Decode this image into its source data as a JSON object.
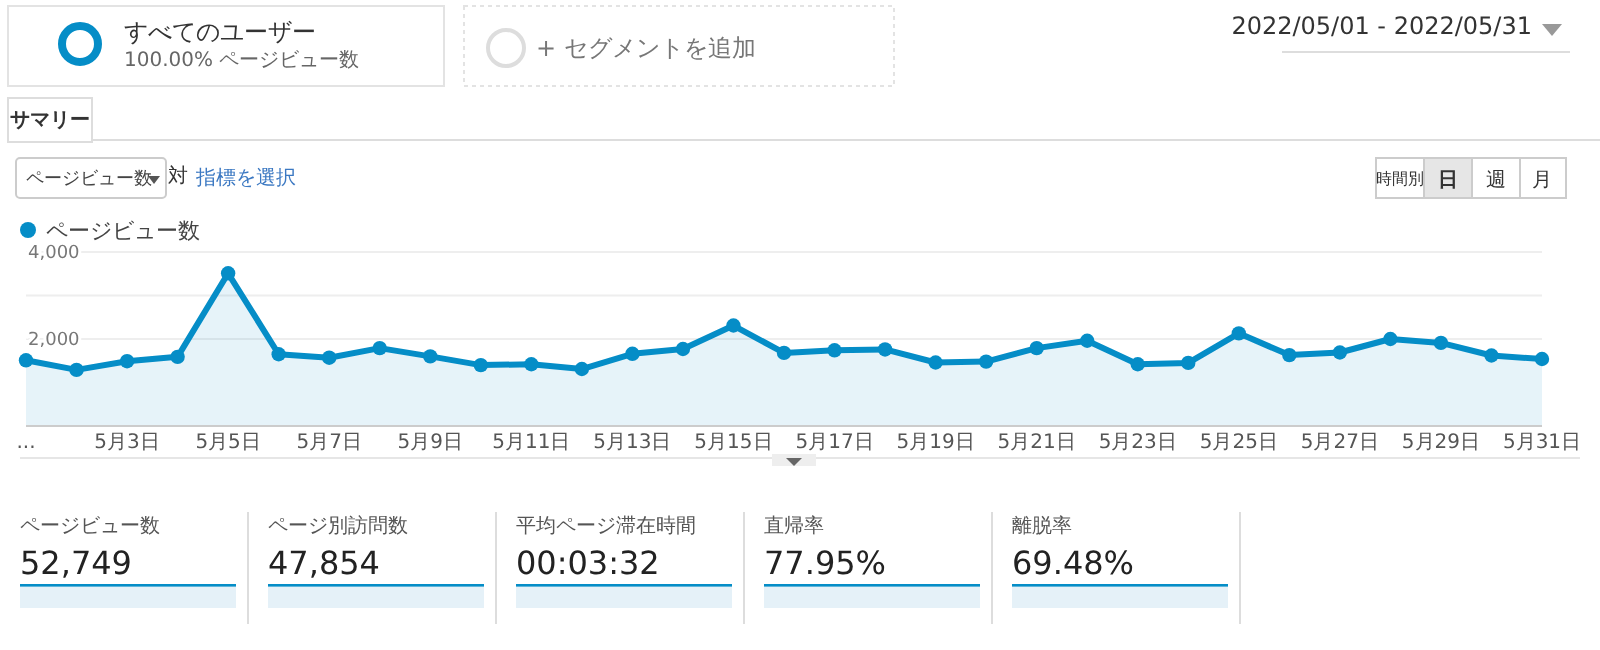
{
  "chart_data": {
    "type": "area",
    "legend": "top left",
    "grid": "y",
    "marker": "circle",
    "categories": [
      "...",
      null,
      "5月3日",
      null,
      "5月5日",
      null,
      "5月7日",
      null,
      "5月9日",
      null,
      "5月11日",
      null,
      "5月13日",
      null,
      "5月15日",
      null,
      "5月17日",
      null,
      "5月19日",
      null,
      "5月21日",
      null,
      "5月23日",
      null,
      "5月25日",
      null,
      "5月27日",
      null,
      "5月29日",
      null,
      "5月31日"
    ],
    "series": [
      {
        "name": "ページビュー数",
        "color": "#058dc7",
        "values": [
          1510,
          1290,
          1490,
          1590,
          3510,
          1650,
          1570,
          1790,
          1600,
          1400,
          1420,
          1310,
          1660,
          1770,
          2310,
          1680,
          1740,
          1760,
          1460,
          1480,
          1790,
          1960,
          1420,
          1450,
          2130,
          1630,
          1690,
          2000,
          1910,
          1620,
          1540
        ]
      }
    ],
    "ylim": [
      0,
      4000
    ],
    "yticks": [
      {
        "value": 2000,
        "label": "2,000"
      },
      {
        "value": 3000,
        "label": null
      },
      {
        "value": 4000,
        "label": "4,000"
      }
    ],
    "annotations": [
      "すべてのユーザー",
      "100.00% ページビュー数",
      "+ セグメントを追加",
      "2022/05/01 - 2022/05/31",
      "サマリー",
      "ページビュー数",
      "対",
      "指標を選択",
      "時間別",
      "日",
      "週",
      "月",
      "ページビュー数",
      "52,749",
      "ページ別訪問数",
      "47,854",
      "平均ページ滞在時間",
      "00:03:32",
      "直帰率",
      "77.95%",
      "離脱率",
      "69.48%"
    ]
  }
}
